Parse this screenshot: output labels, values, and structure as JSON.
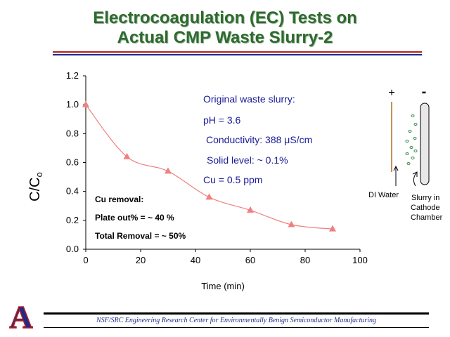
{
  "slide": {
    "title_line1": "Electrocoagulation (EC) Tests on",
    "title_line2": "Actual CMP Waste Slurry-2",
    "footer": "NSF/SRC Engineering Research Center for Environmentally Benign Semiconductor Manufacturing",
    "logo_letter": "A"
  },
  "notes": {
    "line1": "Original waste slurry:",
    "line2": "pH = 3.6",
    "line3": "Conductivity: 388 μS/cm",
    "line4": "Solid level: ~ 0.1%",
    "line5": "Cu = 0.5 ppm",
    "removal_title": "Cu removal:",
    "removal_plate": "Plate out% = ~ 40 %",
    "removal_total": "Total Removal = ~ 50%"
  },
  "diagram": {
    "plus_label": "+",
    "minus_label": "-",
    "di_water_label": "DI Water",
    "slurry_label_1": "Slurry in",
    "slurry_label_2": "Cathode",
    "slurry_label_3": "Chamber"
  },
  "chart_data": {
    "type": "scatter",
    "title": "",
    "xlabel": "Time (min)",
    "ylabel": "C/C",
    "ylabel_subscript": "o",
    "xlim": [
      0,
      100
    ],
    "ylim": [
      0.0,
      1.2
    ],
    "x_ticks": [
      0,
      20,
      40,
      60,
      80,
      100
    ],
    "y_ticks": [
      "0.0",
      "0.2",
      "0.4",
      "0.6",
      "0.8",
      "1.0",
      "1.2"
    ],
    "grid": false,
    "series": [
      {
        "x": [
          0,
          15,
          30,
          45,
          60,
          75,
          90
        ],
        "y": [
          1.0,
          0.64,
          0.54,
          0.36,
          0.27,
          0.17,
          0.14
        ],
        "color": "#f08080",
        "marker": "triangle",
        "smooth_line": true
      }
    ]
  }
}
